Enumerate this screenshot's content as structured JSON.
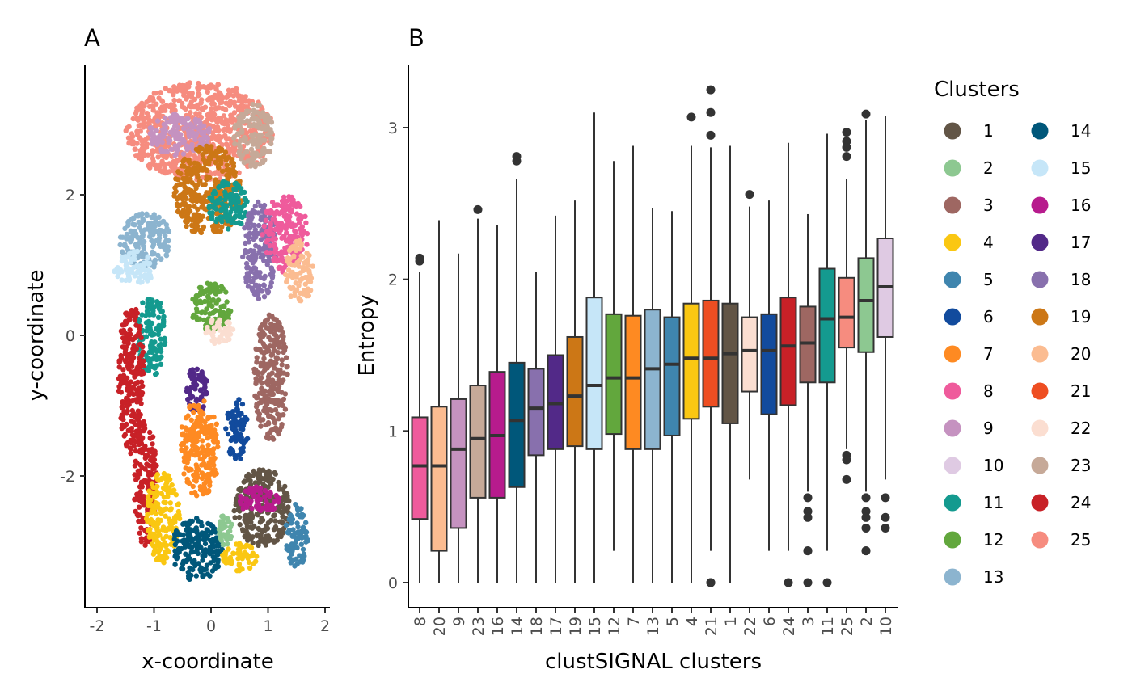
{
  "chart_data": [
    {
      "panel": "A",
      "type": "scatter",
      "title": "A",
      "xlabel": "x-coordinate",
      "ylabel": "y-coordinate",
      "xlim": [
        -2.2,
        2.05
      ],
      "ylim": [
        -3.9,
        3.75
      ],
      "xticks": [
        -2,
        -1,
        0,
        1,
        2
      ],
      "yticks": [
        -2,
        0,
        2
      ],
      "xtick_labels": [
        "-2",
        "-1",
        "0",
        "1",
        "2"
      ],
      "ytick_labels": [
        "-2",
        "0",
        "2"
      ],
      "grid": false,
      "note": "Spatial scatter of cells colored by cluster; regions approximated",
      "regions": [
        {
          "cluster": "25",
          "cx": -0.2,
          "cy": 2.9,
          "rx": 1.3,
          "ry": 0.7
        },
        {
          "cluster": "9",
          "cx": -0.55,
          "cy": 2.85,
          "rx": 0.55,
          "ry": 0.3
        },
        {
          "cluster": "23",
          "cx": 0.75,
          "cy": 2.85,
          "rx": 0.35,
          "ry": 0.45
        },
        {
          "cluster": "19",
          "cx": -0.05,
          "cy": 2.05,
          "rx": 0.6,
          "ry": 0.65
        },
        {
          "cluster": "11",
          "cx": 0.3,
          "cy": 1.85,
          "rx": 0.35,
          "ry": 0.35
        },
        {
          "cluster": "13",
          "cx": -1.15,
          "cy": 1.35,
          "rx": 0.45,
          "ry": 0.4
        },
        {
          "cluster": "15",
          "cx": -1.35,
          "cy": 0.95,
          "rx": 0.35,
          "ry": 0.25
        },
        {
          "cluster": "18",
          "cx": 0.85,
          "cy": 1.2,
          "rx": 0.3,
          "ry": 0.7
        },
        {
          "cluster": "8",
          "cx": 1.3,
          "cy": 1.45,
          "rx": 0.4,
          "ry": 0.55
        },
        {
          "cluster": "20",
          "cx": 1.55,
          "cy": 0.9,
          "rx": 0.25,
          "ry": 0.45
        },
        {
          "cluster": "11",
          "cx": -1.05,
          "cy": 0.0,
          "rx": 0.25,
          "ry": 0.6
        },
        {
          "cluster": "24",
          "cx": -1.4,
          "cy": -0.6,
          "rx": 0.22,
          "ry": 1.1
        },
        {
          "cluster": "24",
          "cx": -1.15,
          "cy": -2.1,
          "rx": 0.2,
          "ry": 0.9
        },
        {
          "cluster": "12",
          "cx": 0.0,
          "cy": 0.4,
          "rx": 0.35,
          "ry": 0.35
        },
        {
          "cluster": "22",
          "cx": 0.15,
          "cy": 0.05,
          "rx": 0.25,
          "ry": 0.2
        },
        {
          "cluster": "3",
          "cx": 1.05,
          "cy": -0.6,
          "rx": 0.3,
          "ry": 0.9
        },
        {
          "cluster": "17",
          "cx": -0.25,
          "cy": -0.8,
          "rx": 0.2,
          "ry": 0.35
        },
        {
          "cluster": "6",
          "cx": 0.45,
          "cy": -1.35,
          "rx": 0.2,
          "ry": 0.45
        },
        {
          "cluster": "7",
          "cx": -0.2,
          "cy": -1.6,
          "rx": 0.35,
          "ry": 0.7
        },
        {
          "cluster": "4",
          "cx": -0.85,
          "cy": -2.6,
          "rx": 0.3,
          "ry": 0.65
        },
        {
          "cluster": "1",
          "cx": 0.9,
          "cy": -2.45,
          "rx": 0.5,
          "ry": 0.55
        },
        {
          "cluster": "16",
          "cx": 0.85,
          "cy": -2.35,
          "rx": 0.35,
          "ry": 0.2
        },
        {
          "cluster": "5",
          "cx": 1.5,
          "cy": -2.85,
          "rx": 0.2,
          "ry": 0.45
        },
        {
          "cluster": "14",
          "cx": -0.25,
          "cy": -3.05,
          "rx": 0.45,
          "ry": 0.45
        },
        {
          "cluster": "2",
          "cx": 0.25,
          "cy": -2.75,
          "rx": 0.12,
          "ry": 0.25
        },
        {
          "cluster": "4",
          "cx": 0.5,
          "cy": -3.15,
          "rx": 0.3,
          "ry": 0.2
        }
      ]
    },
    {
      "panel": "B",
      "type": "box",
      "title": "B",
      "xlabel": "clustSIGNAL clusters",
      "ylabel": "Entropy",
      "ylim": [
        -0.1,
        3.42
      ],
      "yticks": [
        0,
        1,
        2,
        3
      ],
      "ytick_labels": [
        "0",
        "1",
        "2",
        "3"
      ],
      "grid": false,
      "categories": [
        "8",
        "20",
        "9",
        "23",
        "16",
        "14",
        "18",
        "17",
        "19",
        "15",
        "12",
        "7",
        "13",
        "5",
        "4",
        "21",
        "1",
        "22",
        "6",
        "24",
        "3",
        "11",
        "25",
        "2",
        "10"
      ],
      "boxes": [
        {
          "cluster": "8",
          "q1": 0.42,
          "median": 0.77,
          "q3": 1.09,
          "whisker_low": 0,
          "whisker_high": 2.05,
          "outliers": [
            2.12,
            2.14
          ]
        },
        {
          "cluster": "20",
          "q1": 0.21,
          "median": 0.77,
          "q3": 1.16,
          "whisker_low": 0,
          "whisker_high": 2.39,
          "outliers": []
        },
        {
          "cluster": "9",
          "q1": 0.36,
          "median": 0.88,
          "q3": 1.21,
          "whisker_low": 0,
          "whisker_high": 2.17,
          "outliers": []
        },
        {
          "cluster": "23",
          "q1": 0.56,
          "median": 0.95,
          "q3": 1.3,
          "whisker_low": 0,
          "whisker_high": 2.4,
          "outliers": [
            2.46
          ]
        },
        {
          "cluster": "16",
          "q1": 0.56,
          "median": 0.97,
          "q3": 1.39,
          "whisker_low": 0,
          "whisker_high": 2.36,
          "outliers": []
        },
        {
          "cluster": "14",
          "q1": 0.63,
          "median": 1.07,
          "q3": 1.45,
          "whisker_low": 0,
          "whisker_high": 2.66,
          "outliers": [
            2.78,
            2.81
          ]
        },
        {
          "cluster": "18",
          "q1": 0.84,
          "median": 1.15,
          "q3": 1.41,
          "whisker_low": 0,
          "whisker_high": 2.05,
          "outliers": []
        },
        {
          "cluster": "17",
          "q1": 0.88,
          "median": 1.18,
          "q3": 1.5,
          "whisker_low": 0,
          "whisker_high": 2.42,
          "outliers": []
        },
        {
          "cluster": "19",
          "q1": 0.9,
          "median": 1.23,
          "q3": 1.62,
          "whisker_low": 0,
          "whisker_high": 2.52,
          "outliers": []
        },
        {
          "cluster": "15",
          "q1": 0.88,
          "median": 1.3,
          "q3": 1.88,
          "whisker_low": 0,
          "whisker_high": 3.1,
          "outliers": []
        },
        {
          "cluster": "12",
          "q1": 0.98,
          "median": 1.35,
          "q3": 1.77,
          "whisker_low": 0.21,
          "whisker_high": 2.78,
          "outliers": []
        },
        {
          "cluster": "7",
          "q1": 0.88,
          "median": 1.35,
          "q3": 1.76,
          "whisker_low": 0,
          "whisker_high": 2.88,
          "outliers": []
        },
        {
          "cluster": "13",
          "q1": 0.88,
          "median": 1.41,
          "q3": 1.8,
          "whisker_low": 0,
          "whisker_high": 2.47,
          "outliers": []
        },
        {
          "cluster": "5",
          "q1": 0.97,
          "median": 1.44,
          "q3": 1.75,
          "whisker_low": 0,
          "whisker_high": 2.45,
          "outliers": []
        },
        {
          "cluster": "4",
          "q1": 1.08,
          "median": 1.48,
          "q3": 1.84,
          "whisker_low": 0,
          "whisker_high": 2.88,
          "outliers": [
            3.07
          ]
        },
        {
          "cluster": "21",
          "q1": 1.16,
          "median": 1.48,
          "q3": 1.86,
          "whisker_low": 0.21,
          "whisker_high": 2.87,
          "outliers": [
            3.25,
            3.1,
            2.95,
            0,
            0
          ]
        },
        {
          "cluster": "1",
          "q1": 1.05,
          "median": 1.51,
          "q3": 1.84,
          "whisker_low": 0,
          "whisker_high": 2.88,
          "outliers": []
        },
        {
          "cluster": "22",
          "q1": 1.26,
          "median": 1.53,
          "q3": 1.75,
          "whisker_low": 0.68,
          "whisker_high": 2.48,
          "outliers": [
            2.56
          ]
        },
        {
          "cluster": "6",
          "q1": 1.11,
          "median": 1.53,
          "q3": 1.77,
          "whisker_low": 0.21,
          "whisker_high": 2.52,
          "outliers": []
        },
        {
          "cluster": "24",
          "q1": 1.17,
          "median": 1.56,
          "q3": 1.88,
          "whisker_low": 0.21,
          "whisker_high": 2.9,
          "outliers": [
            0
          ]
        },
        {
          "cluster": "3",
          "q1": 1.32,
          "median": 1.58,
          "q3": 1.82,
          "whisker_low": 0.6,
          "whisker_high": 2.43,
          "outliers": [
            0.56,
            0.47,
            0.43,
            0.21,
            0.21,
            0
          ]
        },
        {
          "cluster": "11",
          "q1": 1.32,
          "median": 1.74,
          "q3": 2.07,
          "whisker_low": 0.21,
          "whisker_high": 2.96,
          "outliers": [
            0
          ]
        },
        {
          "cluster": "25",
          "q1": 1.55,
          "median": 1.75,
          "q3": 2.01,
          "whisker_low": 0.88,
          "whisker_high": 2.66,
          "outliers": [
            2.97,
            2.91,
            2.87,
            2.81,
            0.84,
            0.81,
            0.68
          ]
        },
        {
          "cluster": "2",
          "q1": 1.52,
          "median": 1.86,
          "q3": 2.14,
          "whisker_low": 0.6,
          "whisker_high": 3.05,
          "outliers": [
            3.09,
            0.56,
            0.47,
            0.43,
            0.36,
            0.21,
            0.21
          ]
        },
        {
          "cluster": "10",
          "q1": 1.62,
          "median": 1.95,
          "q3": 2.27,
          "whisker_low": 0.68,
          "whisker_high": 3.08,
          "outliers": [
            0.56,
            0.43,
            0.36
          ]
        }
      ]
    }
  ],
  "legend": {
    "title": "Clusters",
    "placement": "right",
    "items": [
      {
        "label": "1",
        "color": "#625546"
      },
      {
        "label": "2",
        "color": "#8dc891"
      },
      {
        "label": "3",
        "color": "#9e6762"
      },
      {
        "label": "4",
        "color": "#fac712"
      },
      {
        "label": "5",
        "color": "#3f85ae"
      },
      {
        "label": "6",
        "color": "#124b9d"
      },
      {
        "label": "7",
        "color": "#fe8a22"
      },
      {
        "label": "8",
        "color": "#ef5b9c"
      },
      {
        "label": "9",
        "color": "#c592c0"
      },
      {
        "label": "10",
        "color": "#dfcae3"
      },
      {
        "label": "11",
        "color": "#149a8f"
      },
      {
        "label": "12",
        "color": "#62a73d"
      },
      {
        "label": "13",
        "color": "#8cb4cf"
      },
      {
        "label": "14",
        "color": "#00577a"
      },
      {
        "label": "15",
        "color": "#c6e6f8"
      },
      {
        "label": "16",
        "color": "#b71b8d"
      },
      {
        "label": "17",
        "color": "#522988"
      },
      {
        "label": "18",
        "color": "#8870ad"
      },
      {
        "label": "19",
        "color": "#cc7716"
      },
      {
        "label": "20",
        "color": "#fbbc91"
      },
      {
        "label": "21",
        "color": "#ee4e22"
      },
      {
        "label": "22",
        "color": "#fbded1"
      },
      {
        "label": "23",
        "color": "#c6a998"
      },
      {
        "label": "24",
        "color": "#c82127"
      },
      {
        "label": "25",
        "color": "#f68c7f"
      }
    ]
  },
  "colors": {
    "box_outline": "#333333",
    "axis": "#000000",
    "tick_text": "#4d4d4d"
  }
}
